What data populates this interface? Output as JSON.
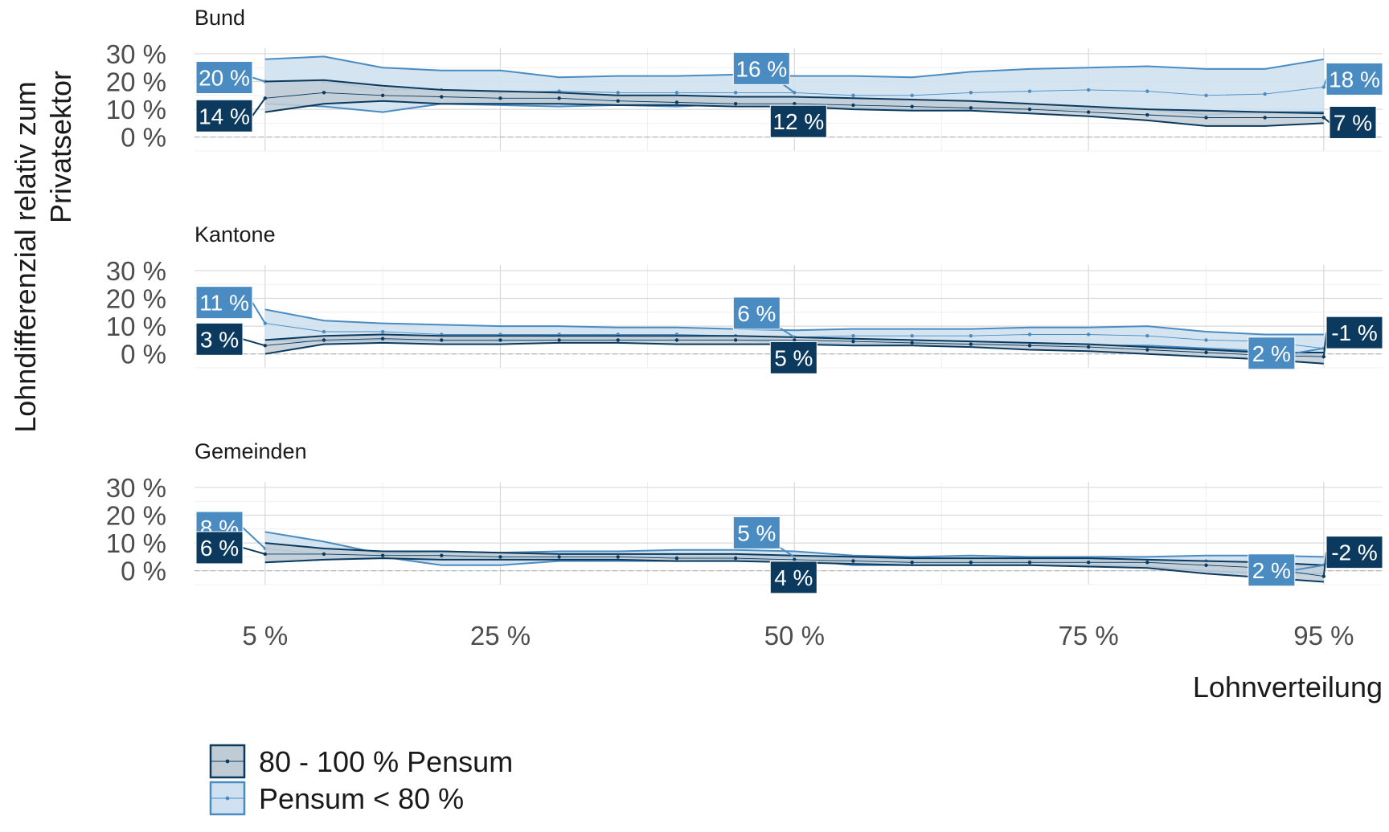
{
  "chart_data": {
    "type": "line",
    "ylabel_lines": [
      "Lohndifferenzial relativ zum",
      "Privatsektor"
    ],
    "xlabel": "Lohnverteilung",
    "x_ticks": [
      5,
      25,
      50,
      75,
      95
    ],
    "x_tick_labels": [
      "5 %",
      "25 %",
      "50 %",
      "75 %",
      "95 %"
    ],
    "y_ticks": [
      0,
      10,
      20,
      30
    ],
    "y_tick_labels": [
      "0 %",
      "10 %",
      "20 %",
      "30 %"
    ],
    "ylim": [
      -5,
      32
    ],
    "xlim": [
      -1,
      100
    ],
    "x": [
      5,
      10,
      15,
      20,
      25,
      30,
      35,
      40,
      45,
      50,
      55,
      60,
      65,
      70,
      75,
      80,
      85,
      90,
      95
    ],
    "colors": {
      "full": "#0b3a5e",
      "part": "#4a8cc2",
      "full_fill": "#bfccd6",
      "part_fill": "#cfe1f0"
    },
    "legend": [
      {
        "key": "full",
        "label": "80 - 100 % Pensum"
      },
      {
        "key": "part",
        "label": "Pensum < 80 %"
      }
    ],
    "panels": [
      {
        "title": "Bund",
        "series": [
          {
            "key": "full",
            "values": [
              14,
              16,
              15,
              14.5,
              14,
              14,
              13,
              12.5,
              12,
              12,
              11.5,
              11,
              10.5,
              10,
              9,
              8,
              7,
              7,
              7
            ],
            "lower": [
              9,
              12,
              13,
              12,
              12,
              12,
              11.5,
              11.5,
              11,
              11,
              10,
              9.5,
              9.5,
              8.5,
              7.5,
              6,
              4,
              4,
              5
            ],
            "upper": [
              20,
              20.5,
              18.5,
              17,
              16.5,
              16,
              15,
              15,
              14.5,
              14.5,
              14,
              13.5,
              13,
              12,
              11,
              10,
              9.5,
              9,
              8.5
            ],
            "labels": [
              {
                "text": "14 %",
                "at": 5,
                "value": 14,
                "side": "left"
              },
              {
                "text": "12 %",
                "at": 50,
                "value": 12,
                "side": "right"
              },
              {
                "text": "7 %",
                "at": 95,
                "value": 7,
                "side": "right"
              }
            ]
          },
          {
            "key": "part",
            "values": [
              20,
              20,
              17,
              17,
              16,
              16.5,
              16,
              16,
              16,
              16,
              15,
              15,
              16,
              16.5,
              17,
              16.5,
              15,
              15.5,
              18
            ],
            "lower": [
              12,
              11,
              9,
              12,
              11.5,
              11,
              11.5,
              11,
              12,
              11.5,
              10.5,
              10,
              10,
              10,
              10,
              10,
              8,
              9,
              9
            ],
            "upper": [
              28,
              29,
              25,
              24,
              24,
              21.5,
              22,
              22,
              22.5,
              22,
              22,
              21.5,
              23.5,
              24.5,
              25,
              25.5,
              24.5,
              24.5,
              28
            ],
            "labels": [
              {
                "text": "20 %",
                "at": 5,
                "value": 20,
                "side": "left"
              },
              {
                "text": "16 %",
                "at": 50,
                "value": 16,
                "side": "above"
              },
              {
                "text": "18 %",
                "at": 95,
                "value": 18,
                "side": "right"
              }
            ]
          }
        ]
      },
      {
        "title": "Kantone",
        "series": [
          {
            "key": "full",
            "values": [
              3,
              5,
              5.5,
              5,
              5,
              5,
              5,
              5,
              5,
              5,
              4.5,
              4,
              3.5,
              3,
              2.5,
              1.5,
              0.5,
              -0.5,
              -1
            ],
            "lower": [
              0,
              3.5,
              4,
              3.5,
              3.5,
              4,
              4,
              3.5,
              3.5,
              3.5,
              3,
              3,
              2.5,
              1.5,
              1,
              0,
              -1,
              -2,
              -3.5
            ],
            "upper": [
              5,
              6.5,
              7,
              6.5,
              6.5,
              6.5,
              6.5,
              6.5,
              6.5,
              6,
              5.5,
              5,
              4.5,
              4,
              3.5,
              2.5,
              1.5,
              0.5,
              0.5
            ]
          },
          {
            "key": "part",
            "values": [
              11,
              8,
              8,
              7,
              7,
              7,
              7,
              7,
              6.5,
              6,
              6.5,
              6.5,
              6.5,
              7,
              7,
              6.5,
              5,
              4.5,
              2
            ],
            "lower": [
              5,
              4.5,
              5,
              4.5,
              4.5,
              5,
              5,
              5,
              5,
              4,
              3.5,
              3.5,
              3.5,
              3.5,
              3,
              3,
              2,
              1,
              -1
            ],
            "upper": [
              16,
              12,
              11,
              10.5,
              10,
              10,
              9.5,
              9.5,
              9,
              8.5,
              9,
              9,
              9,
              9.5,
              9.5,
              10,
              8,
              7,
              7
            ]
          }
        ],
        "labels": [
          {
            "series": "part",
            "text": "11 %",
            "at": 5,
            "value": 11,
            "side": "left"
          },
          {
            "series": "full",
            "text": "3 %",
            "at": 5,
            "value": 3,
            "side": "left"
          },
          {
            "series": "part",
            "text": "6 %",
            "at": 50,
            "value": 6,
            "side": "above"
          },
          {
            "series": "full",
            "text": "5 %",
            "at": 50,
            "value": 5,
            "side": "right"
          },
          {
            "series": "part",
            "text": "2 %",
            "at": 95,
            "value": 2,
            "side": "leftbelow"
          },
          {
            "series": "full",
            "text": "-1 %",
            "at": 95,
            "value": -1,
            "side": "right"
          }
        ]
      },
      {
        "title": "Gemeinden",
        "series": [
          {
            "key": "full",
            "values": [
              6,
              6,
              5.5,
              5.5,
              5,
              5,
              5,
              4.5,
              4.5,
              4,
              3.5,
              3,
              3,
              3,
              3,
              3,
              2,
              1,
              -2
            ],
            "lower": [
              3,
              4,
              4.5,
              4,
              4,
              4,
              4,
              3.5,
              3.5,
              3,
              2.5,
              2,
              2,
              2,
              1.5,
              1,
              -1,
              -2.5,
              -4
            ],
            "upper": [
              10,
              8,
              7,
              7,
              6.5,
              6,
              6,
              6,
              6,
              5.5,
              5,
              4.5,
              4.5,
              4.5,
              4.5,
              4,
              3.5,
              3,
              2
            ]
          },
          {
            "key": "part",
            "values": [
              8,
              6,
              5.5,
              5,
              5,
              5,
              5,
              5,
              5,
              5,
              4,
              3.5,
              3.5,
              3.5,
              3.5,
              3,
              3.5,
              3,
              2
            ],
            "lower": [
              3,
              4,
              5,
              2,
              2,
              3.5,
              3.5,
              3.5,
              4,
              4,
              2,
              2,
              2,
              2,
              2,
              1.5,
              0,
              -1,
              -1
            ],
            "upper": [
              14,
              10.5,
              6,
              7,
              6.5,
              7,
              7,
              7.5,
              7.5,
              7,
              5.5,
              5,
              5.5,
              5,
              5,
              5,
              5.5,
              5.5,
              5
            ]
          }
        ],
        "labels": [
          {
            "series": "part",
            "text": "8 %",
            "at": 5,
            "value": 8,
            "side": "left"
          },
          {
            "series": "full",
            "text": "6 %",
            "at": 5,
            "value": 6,
            "side": "left"
          },
          {
            "series": "part",
            "text": "5 %",
            "at": 50,
            "value": 5,
            "side": "above"
          },
          {
            "series": "full",
            "text": "4 %",
            "at": 50,
            "value": 4,
            "side": "right"
          },
          {
            "series": "part",
            "text": "2 %",
            "at": 95,
            "value": 2,
            "side": "leftbelow"
          },
          {
            "series": "full",
            "text": "-2 %",
            "at": 95,
            "value": -2,
            "side": "right"
          }
        ]
      }
    ]
  }
}
